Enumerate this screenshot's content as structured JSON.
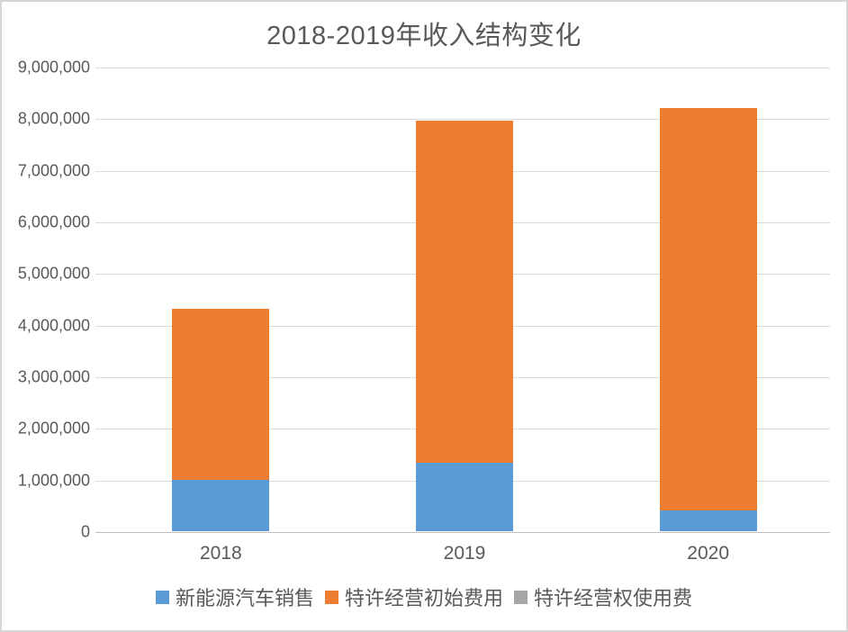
{
  "page": {
    "background": "#FFFFFF",
    "border_color": "#D6D6D6"
  },
  "chart_data": {
    "type": "bar",
    "stacked": true,
    "title": "2018-2019年收入结构变化",
    "categories": [
      "2018",
      "2019",
      "2020"
    ],
    "series": [
      {
        "name": "新能源汽车销售",
        "color": "#5B9BD5",
        "values": [
          1000000,
          1330000,
          400000
        ]
      },
      {
        "name": "特许经营初始费用",
        "color": "#ED7D31",
        "values": [
          3300000,
          6620000,
          7800000
        ]
      },
      {
        "name": "特许经营权使用费",
        "color": "#A6A6A6",
        "values": [
          0,
          0,
          0
        ]
      }
    ],
    "totals": [
      4300000,
      7950000,
      8200000
    ],
    "ylim": [
      0,
      9000000
    ],
    "ytick_step": 1000000,
    "ytick_labels_top_to_bottom": [
      "9,000,000",
      "8,000,000",
      "7,000,000",
      "6,000,000",
      "5,000,000",
      "4,000,000",
      "3,000,000",
      "2,000,000",
      "1,000,000",
      "0"
    ],
    "xlabel": "",
    "ylabel": "",
    "grid": true,
    "gridline_color": "#D9D9D9",
    "axis_line_color": "#BFBFBF",
    "text_color": "#595959",
    "legend_position": "bottom"
  }
}
